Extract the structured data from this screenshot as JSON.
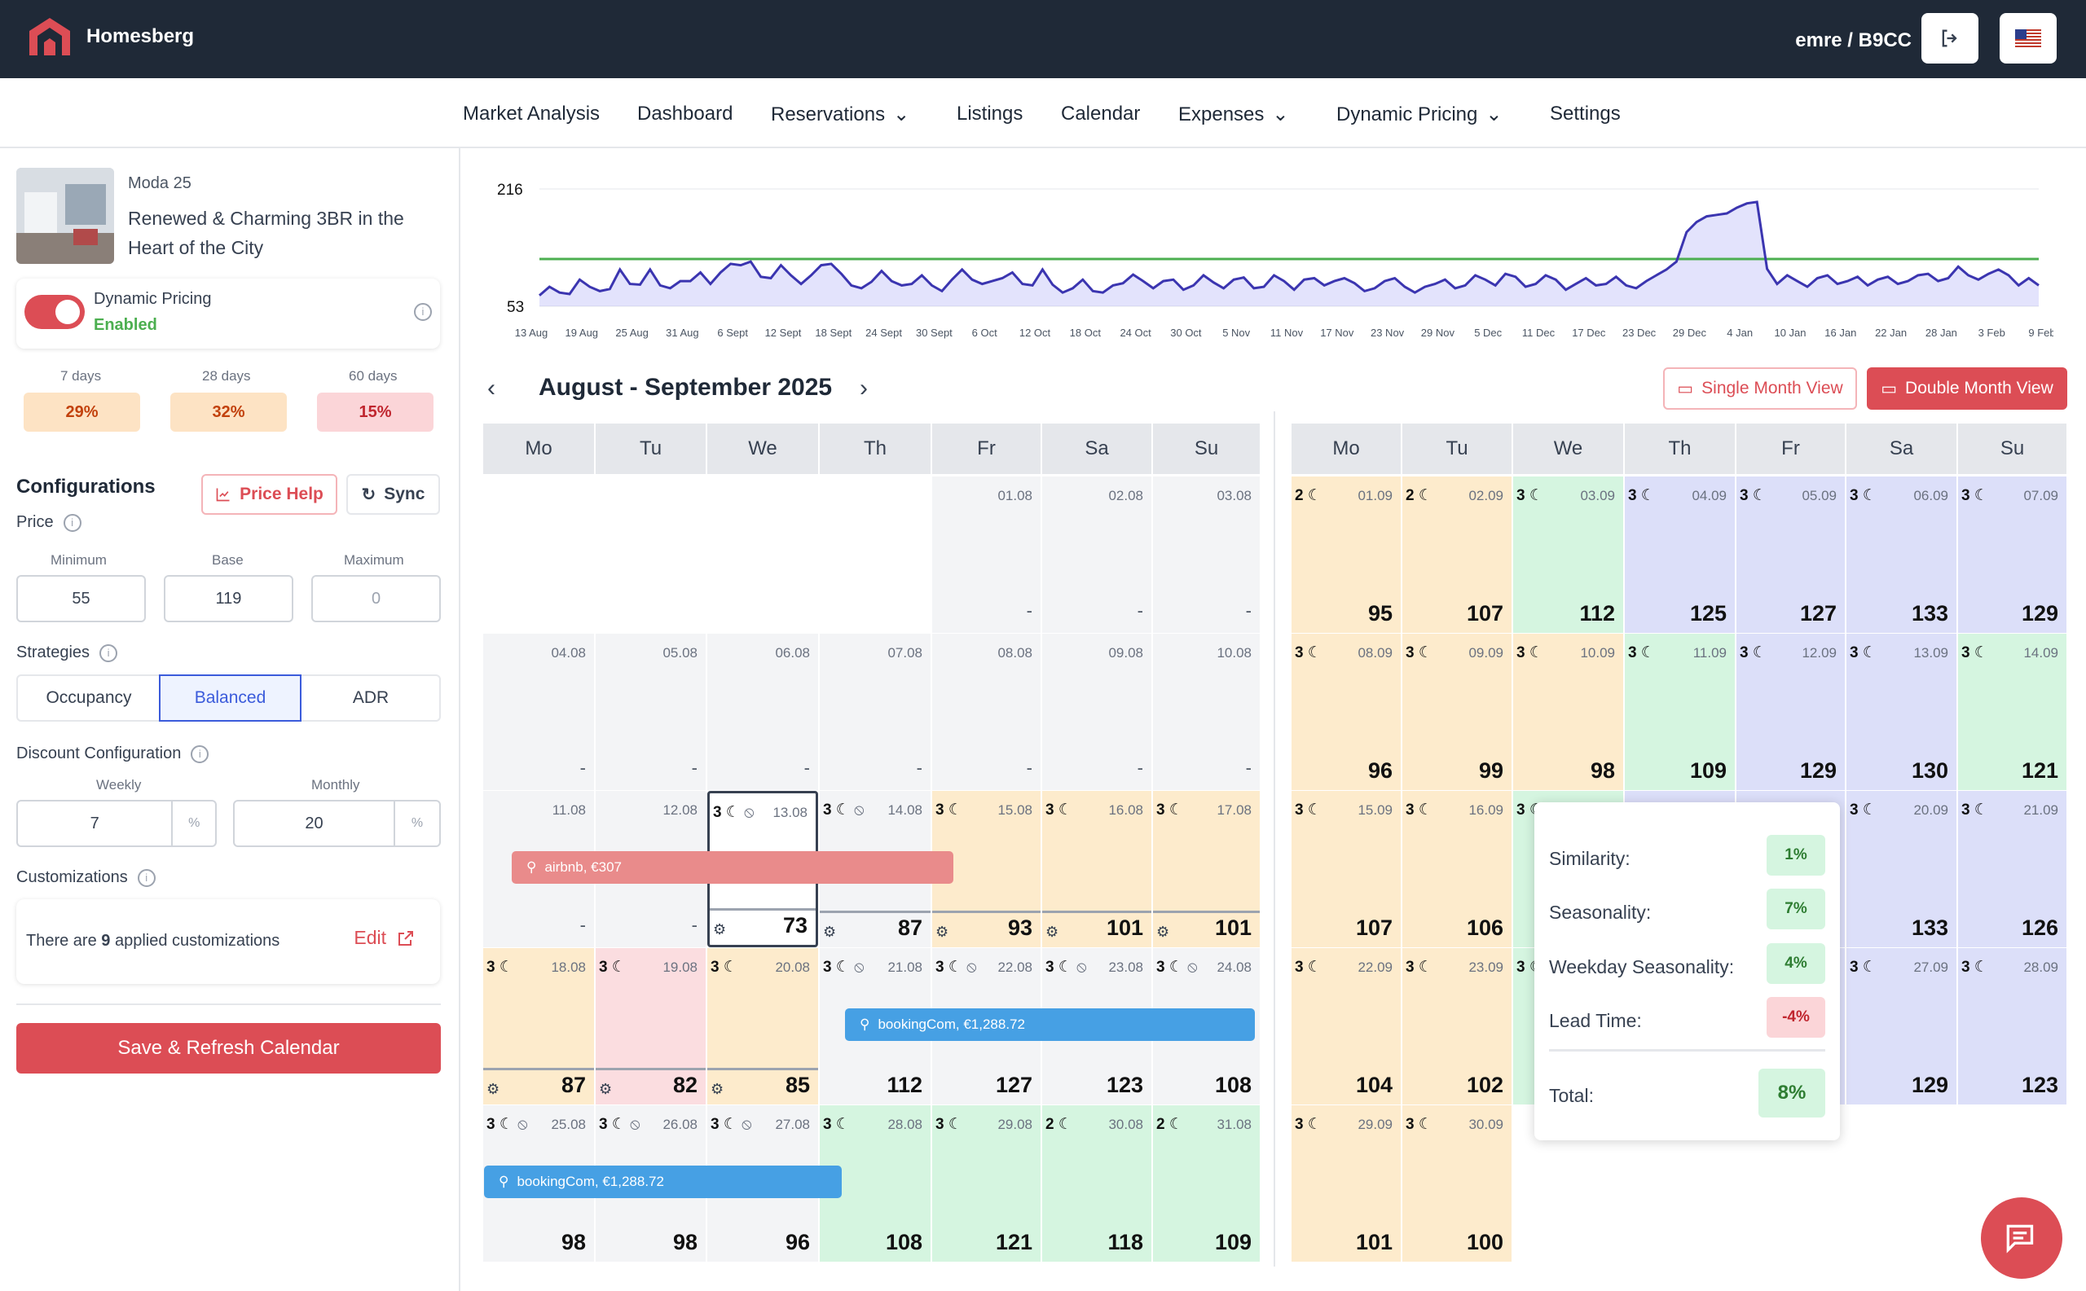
{
  "brand": "Homesberg",
  "user": "emre / B9CC",
  "nav": [
    "Market Analysis",
    "Dashboard",
    "Reservations",
    "Listings",
    "Calendar",
    "Expenses",
    "Dynamic Pricing",
    "Settings"
  ],
  "listing": {
    "code": "Moda 25",
    "title_line1": "Renewed & Charming 3BR in the",
    "title_line2": "Heart of the City"
  },
  "dynamic": {
    "label": "Dynamic Pricing",
    "status": "Enabled"
  },
  "occupancy": [
    {
      "label": "7 days",
      "value": "29%"
    },
    {
      "label": "28 days",
      "value": "32%"
    },
    {
      "label": "60 days",
      "value": "15%"
    }
  ],
  "config": {
    "title": "Configurations",
    "price_help": "Price Help",
    "sync": "Sync",
    "price_label": "Price",
    "min_label": "Minimum",
    "base_label": "Base",
    "max_label": "Maximum",
    "min": "55",
    "base": "119",
    "max": "0",
    "strategies_label": "Strategies",
    "strategies": [
      "Occupancy",
      "Balanced",
      "ADR"
    ],
    "discount_label": "Discount Configuration",
    "weekly_label": "Weekly",
    "monthly_label": "Monthly",
    "weekly": "7",
    "monthly": "20",
    "pct": "%",
    "custom_label": "Customizations",
    "custom_pre": "There are ",
    "custom_count": "9",
    "custom_post": " applied customizations",
    "edit": "Edit",
    "save": "Save & Refresh Calendar"
  },
  "chart": {
    "ymax": "216",
    "ymin": "53",
    "xticks": [
      "13 Aug",
      "19 Aug",
      "25 Aug",
      "31 Aug",
      "6 Sept",
      "12 Sept",
      "18 Sept",
      "24 Sept",
      "30 Sept",
      "6 Oct",
      "12 Oct",
      "18 Oct",
      "24 Oct",
      "30 Oct",
      "5 Nov",
      "11 Nov",
      "17 Nov",
      "23 Nov",
      "29 Nov",
      "5 Dec",
      "11 Dec",
      "17 Dec",
      "23 Dec",
      "29 Dec",
      "4 Jan",
      "10 Jan",
      "16 Jan",
      "22 Jan",
      "28 Jan",
      "3 Feb",
      "9 Feb"
    ]
  },
  "calendar": {
    "title": "August - September 2025",
    "single": "Single Month View",
    "double": "Double Month View",
    "weekdays": [
      "Mo",
      "Tu",
      "We",
      "Th",
      "Fr",
      "Sa",
      "Su"
    ]
  },
  "left_month": [
    [
      {
        "d": "",
        "c": "blank"
      },
      {
        "d": "",
        "c": "blank"
      },
      {
        "d": "",
        "c": "blank"
      },
      {
        "d": "",
        "c": "blank"
      },
      {
        "d": "01.08",
        "c": "gray",
        "p": "-"
      },
      {
        "d": "02.08",
        "c": "gray",
        "p": "-"
      },
      {
        "d": "03.08",
        "c": "gray",
        "p": "-"
      }
    ],
    [
      {
        "d": "04.08",
        "c": "gray",
        "p": "-"
      },
      {
        "d": "05.08",
        "c": "gray",
        "p": "-"
      },
      {
        "d": "06.08",
        "c": "gray",
        "p": "-"
      },
      {
        "d": "07.08",
        "c": "gray",
        "p": "-"
      },
      {
        "d": "08.08",
        "c": "gray",
        "p": "-"
      },
      {
        "d": "09.08",
        "c": "gray",
        "p": "-"
      },
      {
        "d": "10.08",
        "c": "gray",
        "p": "-"
      }
    ],
    [
      {
        "d": "11.08",
        "c": "gray",
        "p": "-"
      },
      {
        "d": "12.08",
        "c": "gray",
        "p": "-"
      },
      {
        "d": "13.08",
        "c": "blank",
        "n": "3",
        "p": "73",
        "g": 1,
        "b": 1,
        "sel": 1
      },
      {
        "d": "14.08",
        "c": "gray",
        "n": "3",
        "p": "87",
        "g": 1,
        "b": 1
      },
      {
        "d": "15.08",
        "c": "or",
        "n": "3",
        "p": "93",
        "g": 1
      },
      {
        "d": "16.08",
        "c": "or",
        "n": "3",
        "p": "101",
        "g": 1
      },
      {
        "d": "17.08",
        "c": "or",
        "n": "3",
        "p": "101",
        "g": 1
      }
    ],
    [
      {
        "d": "18.08",
        "c": "or",
        "n": "3",
        "p": "87",
        "g": 1
      },
      {
        "d": "19.08",
        "c": "pk",
        "n": "3",
        "p": "82",
        "g": 1
      },
      {
        "d": "20.08",
        "c": "or",
        "n": "3",
        "p": "85",
        "g": 1
      },
      {
        "d": "21.08",
        "c": "gray",
        "n": "3",
        "p": "112",
        "b": 1
      },
      {
        "d": "22.08",
        "c": "gray",
        "n": "3",
        "p": "127",
        "b": 1
      },
      {
        "d": "23.08",
        "c": "gray",
        "n": "3",
        "p": "123",
        "b": 1
      },
      {
        "d": "24.08",
        "c": "gray",
        "n": "3",
        "p": "108",
        "b": 1
      }
    ],
    [
      {
        "d": "25.08",
        "c": "gray",
        "n": "3",
        "p": "98",
        "b": 1
      },
      {
        "d": "26.08",
        "c": "gray",
        "n": "3",
        "p": "98",
        "b": 1
      },
      {
        "d": "27.08",
        "c": "gray",
        "n": "3",
        "p": "96",
        "b": 1
      },
      {
        "d": "28.08",
        "c": "gr",
        "n": "3",
        "p": "108"
      },
      {
        "d": "29.08",
        "c": "gr",
        "n": "3",
        "p": "121"
      },
      {
        "d": "30.08",
        "c": "gr",
        "n": "2",
        "p": "118"
      },
      {
        "d": "31.08",
        "c": "gr",
        "n": "2",
        "p": "109"
      }
    ]
  ],
  "right_month": [
    [
      {
        "d": "01.09",
        "c": "or",
        "n": "2",
        "p": "95"
      },
      {
        "d": "02.09",
        "c": "or",
        "n": "2",
        "p": "107"
      },
      {
        "d": "03.09",
        "c": "gr",
        "n": "3",
        "p": "112"
      },
      {
        "d": "04.09",
        "c": "bl",
        "n": "3",
        "p": "125"
      },
      {
        "d": "05.09",
        "c": "bl",
        "n": "3",
        "p": "127"
      },
      {
        "d": "06.09",
        "c": "bl",
        "n": "3",
        "p": "133"
      },
      {
        "d": "07.09",
        "c": "bl",
        "n": "3",
        "p": "129"
      }
    ],
    [
      {
        "d": "08.09",
        "c": "or",
        "n": "3",
        "p": "96"
      },
      {
        "d": "09.09",
        "c": "or",
        "n": "3",
        "p": "99"
      },
      {
        "d": "10.09",
        "c": "or",
        "n": "3",
        "p": "98"
      },
      {
        "d": "11.09",
        "c": "gr",
        "n": "3",
        "p": "109"
      },
      {
        "d": "12.09",
        "c": "bl",
        "n": "3",
        "p": "129"
      },
      {
        "d": "13.09",
        "c": "bl",
        "n": "3",
        "p": "130"
      },
      {
        "d": "14.09",
        "c": "gr",
        "n": "3",
        "p": "121"
      }
    ],
    [
      {
        "d": "15.09",
        "c": "or",
        "n": "3",
        "p": "107"
      },
      {
        "d": "16.09",
        "c": "or",
        "n": "3",
        "p": "106"
      },
      {
        "d": "",
        "c": "gr",
        "n": "3",
        "p": ""
      },
      {
        "d": "",
        "c": "bl",
        "p": ""
      },
      {
        "d": "",
        "c": "bl",
        "p": ""
      },
      {
        "d": "20.09",
        "c": "bl",
        "n": "3",
        "p": "133"
      },
      {
        "d": "21.09",
        "c": "bl",
        "n": "3",
        "p": "126"
      }
    ],
    [
      {
        "d": "22.09",
        "c": "or",
        "n": "3",
        "p": "104"
      },
      {
        "d": "23.09",
        "c": "or",
        "n": "3",
        "p": "102"
      },
      {
        "d": "",
        "c": "gr",
        "n": "3",
        "p": ""
      },
      {
        "d": "",
        "c": "bl",
        "p": ""
      },
      {
        "d": "",
        "c": "bl",
        "p": ""
      },
      {
        "d": "27.09",
        "c": "bl",
        "n": "3",
        "p": "129"
      },
      {
        "d": "28.09",
        "c": "bl",
        "n": "3",
        "p": "123"
      }
    ],
    [
      {
        "d": "29.09",
        "c": "or",
        "n": "3",
        "p": "101"
      },
      {
        "d": "30.09",
        "c": "or",
        "n": "3",
        "p": "100"
      },
      {
        "d": "",
        "c": "blank"
      },
      {
        "d": "",
        "c": "blank"
      },
      {
        "d": "",
        "c": "blank"
      },
      {
        "d": "",
        "c": "blank"
      },
      {
        "d": "",
        "c": "blank"
      }
    ]
  ],
  "bookings": [
    {
      "label": "airbnb, €307"
    },
    {
      "label": "bookingCom, €1,288.72"
    },
    {
      "label": "bookingCom, €1,288.72"
    }
  ],
  "popup": {
    "rows": [
      {
        "label": "Similarity:",
        "value": "1%"
      },
      {
        "label": "Seasonality:",
        "value": "7%"
      },
      {
        "label": "Weekday Seasonality:",
        "value": "4%"
      },
      {
        "label": "Lead Time:",
        "value": "-4%"
      }
    ],
    "total_label": "Total:",
    "total": "8%"
  },
  "series": [
    68,
    80,
    72,
    70,
    90,
    80,
    74,
    77,
    104,
    84,
    83,
    104,
    82,
    78,
    88,
    88,
    100,
    84,
    100,
    112,
    110,
    115,
    94,
    92,
    110,
    96,
    84,
    96,
    110,
    112,
    98,
    82,
    78,
    87,
    102,
    88,
    82,
    84,
    96,
    82,
    74,
    90,
    104,
    90,
    84,
    88,
    92,
    100,
    84,
    82,
    104,
    83,
    72,
    78,
    90,
    74,
    72,
    82,
    85,
    97,
    88,
    78,
    88,
    90,
    76,
    82,
    96,
    86,
    78,
    90,
    93,
    78,
    80,
    96,
    88,
    76,
    90,
    92,
    82,
    88,
    92,
    85,
    74,
    78,
    88,
    92,
    80,
    72,
    80,
    84,
    90,
    78,
    82,
    96,
    90,
    82,
    98,
    94,
    80,
    84,
    96,
    90,
    76,
    84,
    92,
    82,
    84,
    94,
    82,
    78,
    88,
    96,
    104,
    115,
    156,
    170,
    178,
    180,
    182,
    190,
    196,
    198,
    105,
    84,
    96,
    88,
    80,
    92,
    96,
    84,
    88,
    94,
    82,
    90,
    94,
    84,
    88,
    96,
    98,
    88,
    92,
    108,
    96,
    90,
    98,
    104,
    96,
    82,
    92,
    82
  ],
  "colors": {
    "accent": "#dc4d55",
    "line": "#3b35b0",
    "green": "#4caf50"
  }
}
